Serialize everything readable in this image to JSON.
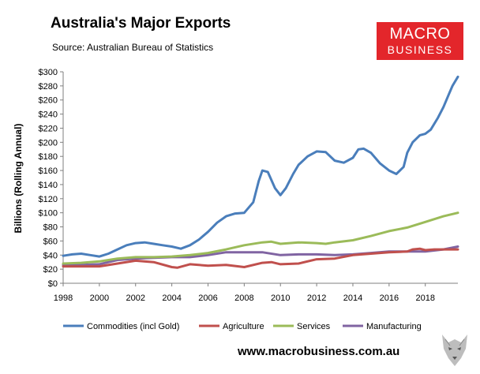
{
  "header": {
    "title": "Australia's Major Exports",
    "source": "Source:  Australian Bureau of Statistics"
  },
  "logo": {
    "line1": "MACRO",
    "line2": "BUSINESS",
    "bg_color": "#e3262b"
  },
  "footer": {
    "url": "www.macrobusiness.com.au"
  },
  "chart_data": {
    "type": "line",
    "title": "Australia's Major Exports",
    "ylabel": "Billions (Rolling Annual)",
    "xlabel": "",
    "xlim": [
      1998,
      2019.8
    ],
    "ylim": [
      0,
      300
    ],
    "x_ticks": [
      1998,
      2000,
      2002,
      2004,
      2006,
      2008,
      2010,
      2012,
      2014,
      2016,
      2018
    ],
    "y_ticks": [
      "$0",
      "$20",
      "$40",
      "$60",
      "$80",
      "$100",
      "$120",
      "$140",
      "$160",
      "$180",
      "$200",
      "$220",
      "$240",
      "$260",
      "$280",
      "$300"
    ],
    "grid": false,
    "legend": "bottom",
    "series": [
      {
        "name": "Commodities (incl Gold)",
        "color": "#4a7ebb",
        "points": [
          [
            1998,
            39
          ],
          [
            1998.5,
            41
          ],
          [
            1999,
            42
          ],
          [
            1999.5,
            40
          ],
          [
            2000,
            38
          ],
          [
            2000.5,
            42
          ],
          [
            2001,
            48
          ],
          [
            2001.5,
            54
          ],
          [
            2002,
            57
          ],
          [
            2002.5,
            58
          ],
          [
            2003,
            56
          ],
          [
            2003.5,
            54
          ],
          [
            2004,
            52
          ],
          [
            2004.5,
            49
          ],
          [
            2005,
            54
          ],
          [
            2005.5,
            62
          ],
          [
            2006,
            73
          ],
          [
            2006.5,
            86
          ],
          [
            2007,
            95
          ],
          [
            2007.5,
            99
          ],
          [
            2008,
            100
          ],
          [
            2008.5,
            115
          ],
          [
            2008.8,
            145
          ],
          [
            2009,
            160
          ],
          [
            2009.3,
            158
          ],
          [
            2009.7,
            135
          ],
          [
            2010,
            125
          ],
          [
            2010.3,
            135
          ],
          [
            2010.7,
            155
          ],
          [
            2011,
            168
          ],
          [
            2011.5,
            180
          ],
          [
            2012,
            187
          ],
          [
            2012.5,
            186
          ],
          [
            2013,
            174
          ],
          [
            2013.5,
            171
          ],
          [
            2014,
            178
          ],
          [
            2014.3,
            190
          ],
          [
            2014.6,
            191
          ],
          [
            2015,
            185
          ],
          [
            2015.5,
            170
          ],
          [
            2016,
            160
          ],
          [
            2016.4,
            155
          ],
          [
            2016.8,
            165
          ],
          [
            2017,
            185
          ],
          [
            2017.3,
            200
          ],
          [
            2017.7,
            210
          ],
          [
            2018,
            212
          ],
          [
            2018.3,
            218
          ],
          [
            2018.7,
            235
          ],
          [
            2019,
            250
          ],
          [
            2019.3,
            268
          ],
          [
            2019.5,
            280
          ],
          [
            2019.8,
            293
          ]
        ]
      },
      {
        "name": "Agriculture",
        "color": "#c0504d",
        "points": [
          [
            1998,
            24
          ],
          [
            1999,
            24
          ],
          [
            2000,
            24
          ],
          [
            2001,
            28
          ],
          [
            2002,
            32
          ],
          [
            2003,
            30
          ],
          [
            2004,
            23
          ],
          [
            2004.3,
            22
          ],
          [
            2005,
            27
          ],
          [
            2006,
            25
          ],
          [
            2007,
            26
          ],
          [
            2008,
            23
          ],
          [
            2009,
            29
          ],
          [
            2009.5,
            30
          ],
          [
            2010,
            27
          ],
          [
            2011,
            28
          ],
          [
            2012,
            34
          ],
          [
            2013,
            35
          ],
          [
            2014,
            40
          ],
          [
            2015,
            42
          ],
          [
            2016,
            44
          ],
          [
            2017,
            45
          ],
          [
            2017.3,
            48
          ],
          [
            2017.7,
            49
          ],
          [
            2018,
            47
          ],
          [
            2018.5,
            48
          ],
          [
            2019,
            48
          ],
          [
            2019.8,
            48
          ]
        ]
      },
      {
        "name": "Services",
        "color": "#9bbb59",
        "points": [
          [
            1998,
            28
          ],
          [
            1999,
            29
          ],
          [
            2000,
            31
          ],
          [
            2001,
            35
          ],
          [
            2002,
            37
          ],
          [
            2003,
            37
          ],
          [
            2004,
            38
          ],
          [
            2005,
            40
          ],
          [
            2006,
            43
          ],
          [
            2007,
            48
          ],
          [
            2008,
            54
          ],
          [
            2009,
            58
          ],
          [
            2009.5,
            59
          ],
          [
            2010,
            56
          ],
          [
            2011,
            58
          ],
          [
            2012,
            57
          ],
          [
            2012.5,
            56
          ],
          [
            2013,
            58
          ],
          [
            2014,
            61
          ],
          [
            2015,
            67
          ],
          [
            2016,
            74
          ],
          [
            2017,
            79
          ],
          [
            2018,
            87
          ],
          [
            2019,
            95
          ],
          [
            2019.8,
            100
          ]
        ]
      },
      {
        "name": "Manufacturing",
        "color": "#8064a2",
        "points": [
          [
            1998,
            26
          ],
          [
            1999,
            26
          ],
          [
            2000,
            27
          ],
          [
            2001,
            33
          ],
          [
            2002,
            35
          ],
          [
            2003,
            36
          ],
          [
            2004,
            37
          ],
          [
            2005,
            37
          ],
          [
            2006,
            40
          ],
          [
            2007,
            44
          ],
          [
            2008,
            44
          ],
          [
            2009,
            44
          ],
          [
            2010,
            40
          ],
          [
            2011,
            41
          ],
          [
            2012,
            41
          ],
          [
            2013,
            40
          ],
          [
            2014,
            41
          ],
          [
            2015,
            43
          ],
          [
            2016,
            45
          ],
          [
            2017,
            45
          ],
          [
            2018,
            45
          ],
          [
            2019,
            48
          ],
          [
            2019.8,
            52
          ]
        ]
      }
    ]
  }
}
